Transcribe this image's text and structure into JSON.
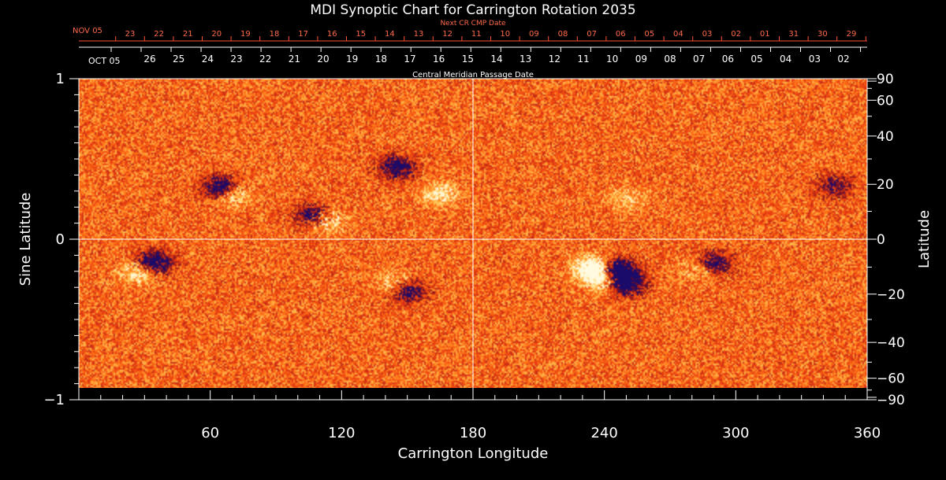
{
  "chart_data": {
    "type": "heatmap",
    "title": "MDI Synoptic Chart for Carrington Rotation 2035",
    "xlabel": "Carrington Longitude",
    "ylabel_left": "Sine Latitude",
    "ylabel_right": "Latitude",
    "xlim": [
      0,
      360
    ],
    "ylim": [
      -1,
      1
    ],
    "x_ticks": [
      "60",
      "120",
      "180",
      "240",
      "300",
      "360"
    ],
    "y_ticks_left": [
      "1",
      "0",
      "−1"
    ],
    "y_ticks_right": [
      "90",
      "60",
      "40",
      "20",
      "0",
      "−20",
      "−40",
      "−60",
      "−90"
    ],
    "top_axis_cmp": {
      "label": "Central Meridian Passage Date",
      "month_label": "OCT 05",
      "dates": [
        "26",
        "25",
        "24",
        "23",
        "22",
        "21",
        "20",
        "19",
        "18",
        "17",
        "16",
        "15",
        "14",
        "13",
        "12",
        "11",
        "10",
        "09",
        "08",
        "07",
        "06",
        "05",
        "04",
        "03",
        "02"
      ]
    },
    "top_axis_next_cr": {
      "label": "Next CR CMP Date",
      "month_label": "NOV 05",
      "dates": [
        "23",
        "22",
        "21",
        "20",
        "19",
        "18",
        "17",
        "16",
        "15",
        "14",
        "13",
        "12",
        "11",
        "10",
        "09",
        "08",
        "07",
        "06",
        "05",
        "04",
        "03",
        "02",
        "01",
        "31",
        "30",
        "29"
      ]
    },
    "colormap": [
      "#1a0a6a",
      "#7a1020",
      "#e83810",
      "#ff7a18",
      "#ffd060",
      "#fffae0"
    ],
    "background_level": "#e64b1c",
    "active_regions": [
      {
        "lon": 65,
        "sinlat": 0.32,
        "polarity": "negative",
        "strength": 0.7
      },
      {
        "lon": 70,
        "sinlat": 0.28,
        "polarity": "positive",
        "strength": 0.6
      },
      {
        "lon": 108,
        "sinlat": 0.14,
        "polarity": "negative",
        "strength": 0.8
      },
      {
        "lon": 112,
        "sinlat": 0.12,
        "polarity": "positive",
        "strength": 0.9
      },
      {
        "lon": 145,
        "sinlat": 0.45,
        "polarity": "negative",
        "strength": 0.6
      },
      {
        "lon": 165,
        "sinlat": 0.28,
        "polarity": "positive",
        "strength": 0.5
      },
      {
        "lon": 28,
        "sinlat": -0.2,
        "polarity": "positive",
        "strength": 0.7
      },
      {
        "lon": 34,
        "sinlat": -0.15,
        "polarity": "negative",
        "strength": 0.8
      },
      {
        "lon": 150,
        "sinlat": -0.32,
        "polarity": "negative",
        "strength": 0.6
      },
      {
        "lon": 145,
        "sinlat": -0.28,
        "polarity": "positive",
        "strength": 0.5
      },
      {
        "lon": 235,
        "sinlat": -0.18,
        "polarity": "positive",
        "strength": 1.0
      },
      {
        "lon": 240,
        "sinlat": -0.25,
        "polarity": "positive",
        "strength": 0.8
      },
      {
        "lon": 246,
        "sinlat": -0.2,
        "polarity": "negative",
        "strength": 1.0
      },
      {
        "lon": 250,
        "sinlat": -0.28,
        "polarity": "negative",
        "strength": 0.7
      },
      {
        "lon": 290,
        "sinlat": -0.15,
        "polarity": "negative",
        "strength": 0.6
      },
      {
        "lon": 284,
        "sinlat": -0.18,
        "polarity": "positive",
        "strength": 0.4
      },
      {
        "lon": 345,
        "sinlat": 0.33,
        "polarity": "negative",
        "strength": 0.4
      },
      {
        "lon": 250,
        "sinlat": 0.25,
        "polarity": "positive",
        "strength": 0.3
      }
    ]
  }
}
